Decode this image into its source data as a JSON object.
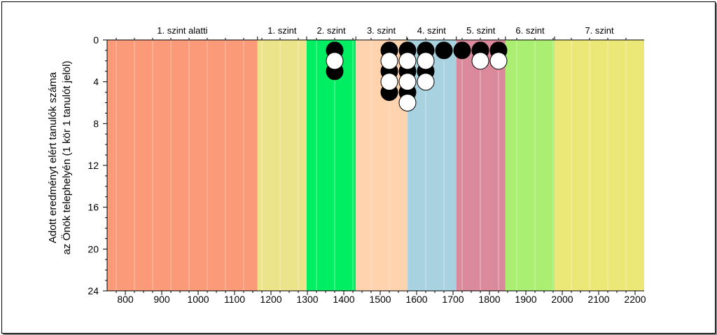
{
  "chart_data": {
    "type": "scatter",
    "title": "",
    "xlabel": "",
    "ylabel_lines": [
      "Adott eredményt elért tanulók száma",
      "az Önök telephelyén (1 kör 1 tanulót jelöl)"
    ],
    "xlim": [
      750,
      2225
    ],
    "ylim": [
      0,
      24
    ],
    "y_inverted": true,
    "x_ticks": [
      800,
      900,
      1000,
      1100,
      1200,
      1300,
      1400,
      1500,
      1600,
      1700,
      1800,
      1900,
      2000,
      2100,
      2200
    ],
    "y_ticks": [
      0,
      4,
      8,
      12,
      16,
      20,
      24
    ],
    "levels": [
      {
        "label": "1. szint alatti",
        "from": 750,
        "to": 1163,
        "color": "#FA9A78"
      },
      {
        "label": "1. szint",
        "from": 1163,
        "to": 1298,
        "color": "#ECE48A"
      },
      {
        "label": "2. szint",
        "from": 1298,
        "to": 1433,
        "color": "#00EE62"
      },
      {
        "label": "3. szint",
        "from": 1433,
        "to": 1573,
        "color": "#FFD3AE"
      },
      {
        "label": "4. szint",
        "from": 1573,
        "to": 1709,
        "color": "#A9D2E0"
      },
      {
        "label": "5. szint",
        "from": 1709,
        "to": 1844,
        "color": "#DA8A9B"
      },
      {
        "label": "6. szint",
        "from": 1844,
        "to": 1979,
        "color": "#AAEE72"
      },
      {
        "label": "7. szint",
        "from": 1979,
        "to": 2225,
        "color": "#ECE878"
      }
    ],
    "series": [
      {
        "fill": "black",
        "points": [
          {
            "x": 1375,
            "y": 1
          },
          {
            "x": 1375,
            "y": 3
          },
          {
            "x": 1525,
            "y": 1
          },
          {
            "x": 1525,
            "y": 3
          },
          {
            "x": 1525,
            "y": 5
          },
          {
            "x": 1575,
            "y": 1
          },
          {
            "x": 1575,
            "y": 3
          },
          {
            "x": 1575,
            "y": 5
          },
          {
            "x": 1625,
            "y": 1
          },
          {
            "x": 1625,
            "y": 3
          },
          {
            "x": 1675,
            "y": 1
          },
          {
            "x": 1725,
            "y": 1
          },
          {
            "x": 1775,
            "y": 1
          },
          {
            "x": 1825,
            "y": 1
          }
        ]
      },
      {
        "fill": "white",
        "points": [
          {
            "x": 1375,
            "y": 2
          },
          {
            "x": 1525,
            "y": 2
          },
          {
            "x": 1525,
            "y": 4
          },
          {
            "x": 1575,
            "y": 2
          },
          {
            "x": 1575,
            "y": 4
          },
          {
            "x": 1575,
            "y": 6
          },
          {
            "x": 1625,
            "y": 2
          },
          {
            "x": 1625,
            "y": 4
          },
          {
            "x": 1775,
            "y": 2
          },
          {
            "x": 1825,
            "y": 2
          }
        ]
      }
    ]
  }
}
